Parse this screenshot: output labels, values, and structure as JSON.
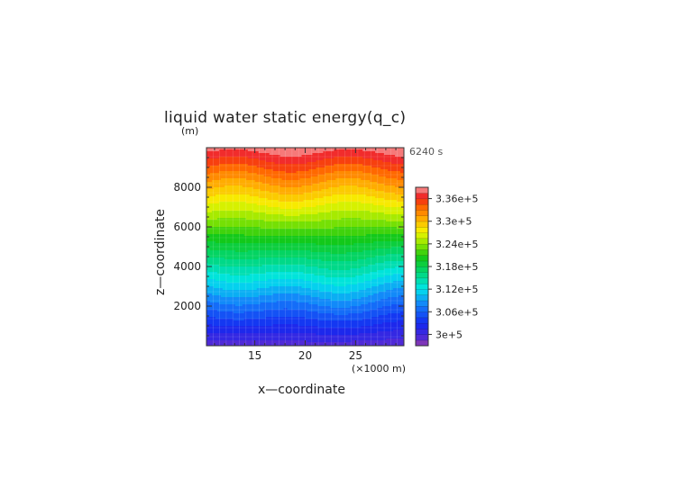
{
  "chart_data": {
    "type": "heatmap",
    "title": "liquid water static energy(q_c)",
    "xlabel": "x—coordinate",
    "ylabel": "z—coordinate",
    "y_unit": "(m)",
    "x_unit": "(×1000 m)",
    "time_label": "6240 s",
    "xlim": [
      10.2,
      29.8
    ],
    "ylim": [
      0,
      10000
    ],
    "x_ticks": [
      15,
      20,
      25
    ],
    "x_tick_labels": [
      "15",
      "20",
      "25"
    ],
    "y_ticks": [
      2000,
      4000,
      6000,
      8000
    ],
    "y_tick_labels": [
      "2000",
      "4000",
      "6000",
      "8000"
    ],
    "colorbar": {
      "min": 297000.0,
      "max": 339000.0,
      "step": 1500.0,
      "labels": [
        "3e+5",
        "3.06e+5",
        "3.12e+5",
        "3.18e+5",
        "3.24e+5",
        "3.3e+5",
        "3.36e+5"
      ],
      "label_values": [
        300000,
        306000,
        312000,
        318000,
        324000,
        330000,
        336000
      ]
    },
    "field_description_values": {
      "surface_value": 299000.0,
      "top_value": 338500.0
    }
  }
}
